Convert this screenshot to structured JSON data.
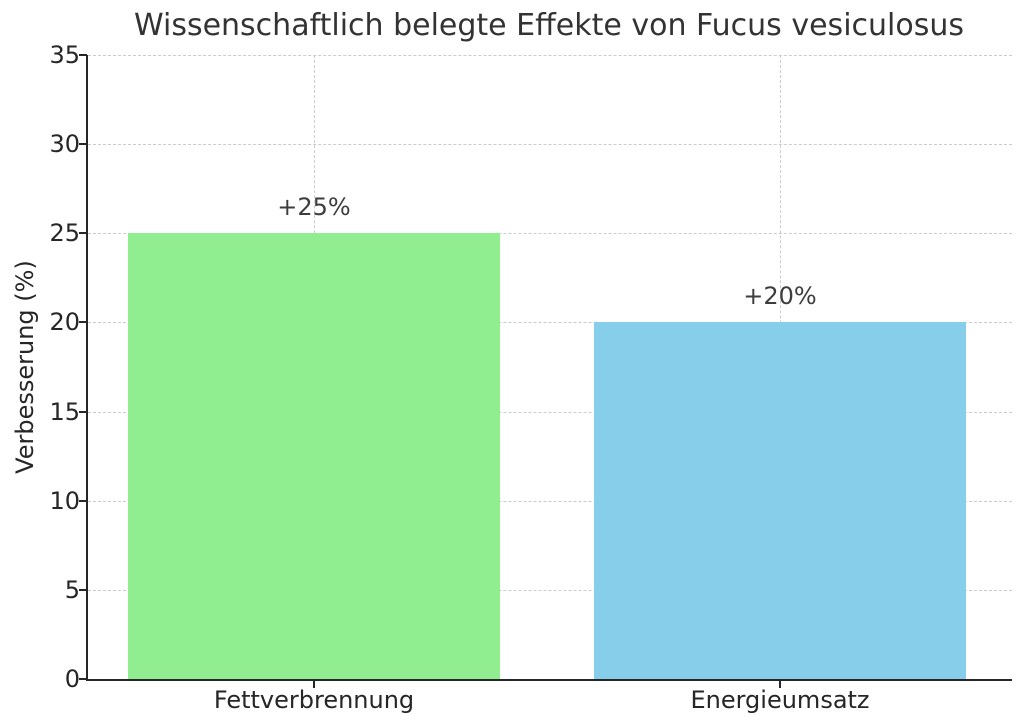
{
  "chart_data": {
    "type": "bar",
    "title": "Wissenschaftlich belegte Effekte von Fucus vesiculosus",
    "ylabel": "Verbesserung (%)",
    "categories": [
      "Fettverbrennung",
      "Energieumsatz"
    ],
    "values": [
      25,
      20
    ],
    "bar_labels": [
      "+25%",
      "+20%"
    ],
    "bar_colors": [
      "#90ee90",
      "#87ceeb"
    ],
    "ylim": [
      0,
      35
    ],
    "yticks": [
      0,
      5,
      10,
      15,
      20,
      25,
      30,
      35
    ],
    "grid": {
      "style": "dashed",
      "color": "#cccccc",
      "axes": "both"
    },
    "legend": null
  },
  "styles": {
    "background": "#ffffff",
    "spine_color": "#262626",
    "tick_text_color": "#262626",
    "title_color": "#333333",
    "annotation_color": "#3d3d3d"
  }
}
